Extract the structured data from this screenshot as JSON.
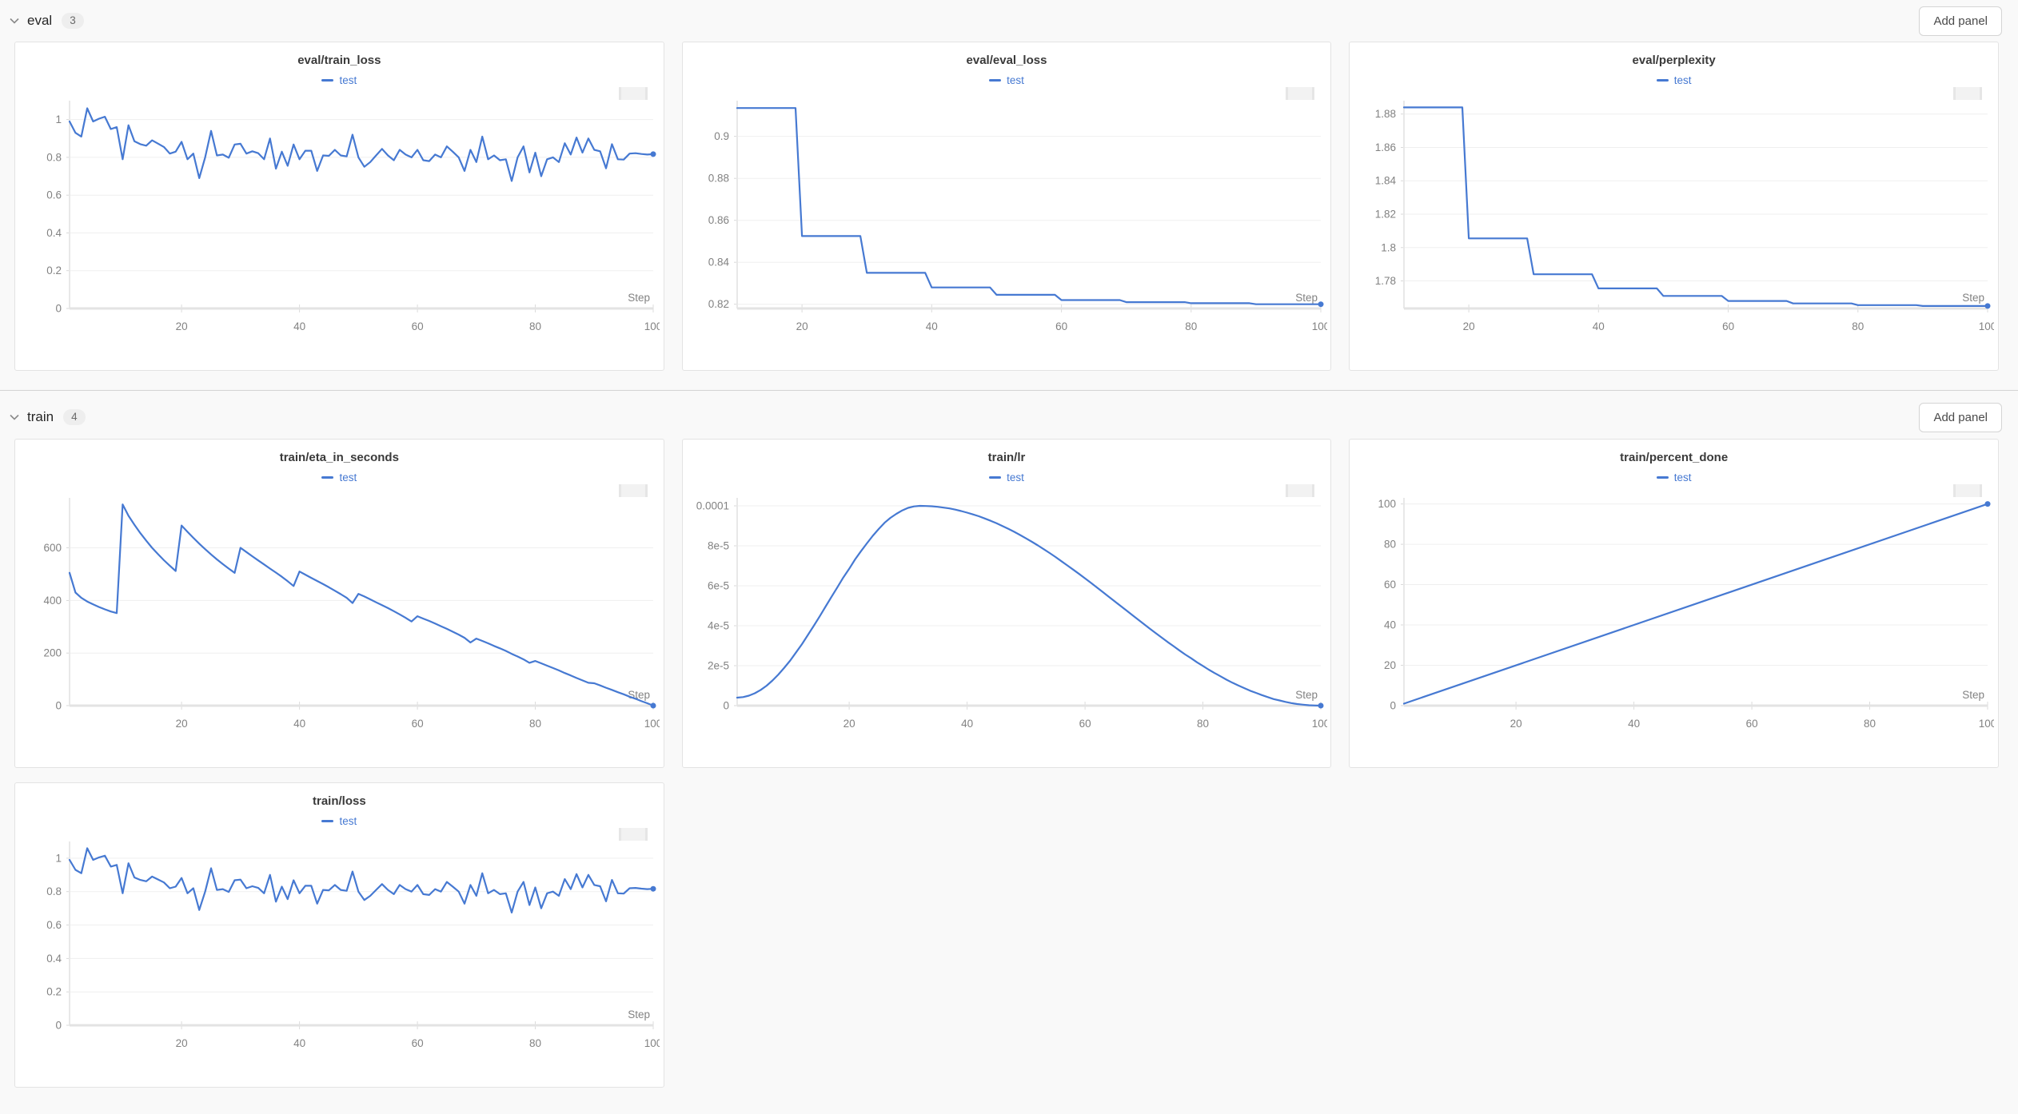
{
  "colors": {
    "accent": "#4679d2",
    "axis_text": "#828282",
    "grid": "#efefef",
    "axis_line": "#e3e3e3"
  },
  "sections": [
    {
      "name": "eval",
      "count": "3",
      "add_panel_label": "Add panel",
      "panels": [
        0,
        1,
        2
      ]
    },
    {
      "name": "train",
      "count": "4",
      "add_panel_label": "Add panel",
      "panels": [
        3,
        4,
        5,
        6
      ]
    }
  ],
  "chart_data": [
    {
      "type": "line",
      "title": "eval/train_loss",
      "xlabel": "Step",
      "legend_position": "top-center",
      "grid": true,
      "xlim": [
        1,
        100
      ],
      "ylim": [
        0,
        1.1
      ],
      "xticks": [
        20,
        40,
        60,
        80,
        100
      ],
      "yticks": [
        0,
        0.2,
        0.4,
        0.6,
        0.8,
        1
      ],
      "ytick_labels": [
        "0",
        "0.2",
        "0.4",
        "0.6",
        "0.8",
        "1"
      ],
      "series": [
        {
          "name": "test",
          "color": "#4679d2",
          "x0": 1,
          "dx": 1,
          "y": [
            0.99,
            0.93,
            0.91,
            1.06,
            0.99,
            1.005,
            1.015,
            0.95,
            0.96,
            0.79,
            0.97,
            0.885,
            0.87,
            0.862,
            0.89,
            0.873,
            0.855,
            0.82,
            0.83,
            0.882,
            0.79,
            0.82,
            0.69,
            0.8,
            0.94,
            0.81,
            0.815,
            0.798,
            0.868,
            0.872,
            0.82,
            0.832,
            0.822,
            0.79,
            0.9,
            0.74,
            0.83,
            0.755,
            0.868,
            0.79,
            0.835,
            0.835,
            0.728,
            0.81,
            0.808,
            0.84,
            0.81,
            0.805,
            0.92,
            0.8,
            0.75,
            0.775,
            0.81,
            0.845,
            0.81,
            0.785,
            0.84,
            0.815,
            0.8,
            0.84,
            0.785,
            0.78,
            0.815,
            0.8,
            0.858,
            0.83,
            0.8,
            0.728,
            0.84,
            0.775,
            0.91,
            0.79,
            0.81,
            0.785,
            0.79,
            0.675,
            0.8,
            0.858,
            0.72,
            0.825,
            0.7,
            0.79,
            0.8,
            0.775,
            0.875,
            0.815,
            0.905,
            0.825,
            0.9,
            0.84,
            0.832,
            0.742,
            0.87,
            0.79,
            0.788,
            0.82,
            0.822,
            0.818,
            0.815,
            0.817
          ]
        }
      ]
    },
    {
      "type": "line",
      "title": "eval/eval_loss",
      "xlabel": "Step",
      "legend_position": "top-center",
      "grid": true,
      "xlim": [
        10,
        100
      ],
      "ylim": [
        0.818,
        0.917
      ],
      "xticks": [
        20,
        40,
        60,
        80,
        100
      ],
      "yticks": [
        0.82,
        0.84,
        0.86,
        0.88,
        0.9
      ],
      "ytick_labels": [
        "0.82",
        "0.84",
        "0.86",
        "0.88",
        "0.9"
      ],
      "series": [
        {
          "name": "test",
          "color": "#4679d2",
          "points": [
            [
              10,
              0.9135
            ],
            [
              19,
              0.9135
            ],
            [
              20,
              0.8525
            ],
            [
              29,
              0.8525
            ],
            [
              30,
              0.835
            ],
            [
              39,
              0.835
            ],
            [
              40,
              0.828
            ],
            [
              49,
              0.828
            ],
            [
              50,
              0.8245
            ],
            [
              59,
              0.8245
            ],
            [
              60,
              0.822
            ],
            [
              69,
              0.822
            ],
            [
              70,
              0.821
            ],
            [
              79,
              0.821
            ],
            [
              80,
              0.8205
            ],
            [
              89,
              0.8205
            ],
            [
              90,
              0.82
            ],
            [
              100,
              0.82
            ]
          ]
        }
      ]
    },
    {
      "type": "line",
      "title": "eval/perplexity",
      "xlabel": "Step",
      "legend_position": "top-center",
      "grid": true,
      "xlim": [
        10,
        100
      ],
      "ylim": [
        1.7635,
        1.888
      ],
      "xticks": [
        20,
        40,
        60,
        80,
        100
      ],
      "yticks": [
        1.78,
        1.8,
        1.82,
        1.84,
        1.86,
        1.88
      ],
      "ytick_labels": [
        "1.78",
        "1.8",
        "1.82",
        "1.84",
        "1.86",
        "1.88"
      ],
      "series": [
        {
          "name": "test",
          "color": "#4679d2",
          "points": [
            [
              10,
              1.884
            ],
            [
              19,
              1.884
            ],
            [
              20,
              1.8055
            ],
            [
              29,
              1.8055
            ],
            [
              30,
              1.784
            ],
            [
              39,
              1.784
            ],
            [
              40,
              1.7755
            ],
            [
              49,
              1.7755
            ],
            [
              50,
              1.771
            ],
            [
              59,
              1.771
            ],
            [
              60,
              1.768
            ],
            [
              69,
              1.768
            ],
            [
              70,
              1.7665
            ],
            [
              79,
              1.7665
            ],
            [
              80,
              1.7655
            ],
            [
              89,
              1.7655
            ],
            [
              90,
              1.765
            ],
            [
              100,
              1.765
            ]
          ]
        }
      ]
    },
    {
      "type": "line",
      "title": "train/eta_in_seconds",
      "xlabel": "Step",
      "legend_position": "top-center",
      "grid": true,
      "xlim": [
        1,
        100
      ],
      "ylim": [
        0,
        790
      ],
      "xticks": [
        20,
        40,
        60,
        80,
        100
      ],
      "yticks": [
        0,
        200,
        400,
        600
      ],
      "ytick_labels": [
        "0",
        "200",
        "400",
        "600"
      ],
      "series": [
        {
          "name": "test",
          "color": "#4679d2",
          "x0": 1,
          "dx": 1,
          "y": [
            505,
            430,
            410,
            396,
            385,
            375,
            366,
            358,
            352,
            765,
            722,
            688,
            656,
            627,
            600,
            576,
            553,
            532,
            512,
            685,
            661,
            638,
            616,
            595,
            575,
            556,
            538,
            521,
            505,
            600,
            584,
            568,
            552,
            537,
            521,
            506,
            490,
            473,
            455,
            510,
            498,
            486,
            474,
            462,
            450,
            437,
            424,
            410,
            390,
            425,
            415,
            404,
            393,
            382,
            371,
            359,
            347,
            334,
            320,
            340,
            331,
            322,
            312,
            302,
            292,
            281,
            270,
            258,
            240,
            255,
            246,
            237,
            227,
            218,
            208,
            197,
            187,
            176,
            163,
            170,
            161,
            152,
            143,
            134,
            124,
            115,
            105,
            96,
            87,
            85,
            77,
            68,
            60,
            51,
            43,
            34,
            26,
            17,
            9,
            0
          ]
        }
      ]
    },
    {
      "type": "line",
      "title": "train/lr",
      "xlabel": "Step",
      "legend_position": "top-center",
      "grid": true,
      "xlim": [
        1,
        100
      ],
      "ylim": [
        0,
        0.000104
      ],
      "xticks": [
        20,
        40,
        60,
        80,
        100
      ],
      "yticks": [
        0,
        2e-05,
        4e-05,
        6e-05,
        8e-05,
        0.0001
      ],
      "ytick_labels": [
        "0",
        "2e-5",
        "4e-5",
        "6e-5",
        "8e-5",
        "0.0001"
      ],
      "series": [
        {
          "name": "test",
          "color": "#4679d2",
          "x0": 1,
          "dx": 1,
          "y": [
            4e-06,
            4.3e-06,
            5e-06,
            6.2e-06,
            7.9e-06,
            1e-05,
            1.26e-05,
            1.56e-05,
            1.9e-05,
            2.26e-05,
            2.67e-05,
            3.08e-05,
            3.54e-05,
            4e-05,
            4.47e-05,
            4.96e-05,
            5.45e-05,
            5.93e-05,
            6.41e-05,
            6.85e-05,
            7.32e-05,
            7.73e-05,
            8.12e-05,
            8.5e-05,
            8.84e-05,
            9.15e-05,
            9.4e-05,
            9.6e-05,
            9.77e-05,
            9.9e-05,
            9.97e-05,
            0.0001,
            9.99e-05,
            9.98e-05,
            9.95e-05,
            9.91e-05,
            9.87e-05,
            9.81e-05,
            9.74e-05,
            9.66e-05,
            9.57e-05,
            9.48e-05,
            9.37e-05,
            9.25e-05,
            9.13e-05,
            8.99e-05,
            8.85e-05,
            8.7e-05,
            8.54e-05,
            8.37e-05,
            8.2e-05,
            8.02e-05,
            7.83e-05,
            7.64e-05,
            7.44e-05,
            7.23e-05,
            7.02e-05,
            6.81e-05,
            6.59e-05,
            6.37e-05,
            6.15e-05,
            5.92e-05,
            5.69e-05,
            5.46e-05,
            5.23e-05,
            5e-05,
            4.77e-05,
            4.54e-05,
            4.31e-05,
            4.08e-05,
            3.85e-05,
            3.63e-05,
            3.41e-05,
            3.19e-05,
            2.98e-05,
            2.77e-05,
            2.56e-05,
            2.37e-05,
            2.17e-05,
            1.99e-05,
            1.8e-05,
            1.63e-05,
            1.47e-05,
            1.3e-05,
            1.15e-05,
            1.01e-05,
            8.8e-06,
            7.5e-06,
            6.4e-06,
            5.3e-06,
            4.3e-06,
            3.3e-06,
            2.6e-06,
            1.9e-06,
            1.3e-06,
            8e-07,
            5e-07,
            2e-07,
            1e-07,
            0
          ]
        }
      ]
    },
    {
      "type": "line",
      "title": "train/percent_done",
      "xlabel": "Step",
      "legend_position": "top-center",
      "grid": true,
      "xlim": [
        1,
        100
      ],
      "ylim": [
        0,
        103
      ],
      "xticks": [
        20,
        40,
        60,
        80,
        100
      ],
      "yticks": [
        0,
        20,
        40,
        60,
        80,
        100
      ],
      "ytick_labels": [
        "0",
        "20",
        "40",
        "60",
        "80",
        "100"
      ],
      "series": [
        {
          "name": "test",
          "color": "#4679d2",
          "points": [
            [
              1,
              1
            ],
            [
              100,
              100
            ]
          ]
        }
      ]
    },
    {
      "type": "line",
      "title": "train/loss",
      "xlabel": "Step",
      "legend_position": "top-center",
      "grid": true,
      "xlim": [
        1,
        100
      ],
      "ylim": [
        0,
        1.1
      ],
      "xticks": [
        20,
        40,
        60,
        80,
        100
      ],
      "yticks": [
        0,
        0.2,
        0.4,
        0.6,
        0.8,
        1
      ],
      "ytick_labels": [
        "0",
        "0.2",
        "0.4",
        "0.6",
        "0.8",
        "1"
      ],
      "series": [
        {
          "name": "test",
          "color": "#4679d2",
          "x0": 1,
          "dx": 1,
          "y": [
            0.99,
            0.93,
            0.91,
            1.06,
            0.99,
            1.005,
            1.015,
            0.95,
            0.96,
            0.79,
            0.97,
            0.885,
            0.87,
            0.862,
            0.89,
            0.873,
            0.855,
            0.82,
            0.83,
            0.882,
            0.79,
            0.82,
            0.69,
            0.8,
            0.94,
            0.81,
            0.815,
            0.798,
            0.868,
            0.872,
            0.82,
            0.832,
            0.822,
            0.79,
            0.9,
            0.74,
            0.83,
            0.755,
            0.868,
            0.79,
            0.835,
            0.835,
            0.728,
            0.81,
            0.808,
            0.84,
            0.81,
            0.805,
            0.92,
            0.8,
            0.75,
            0.775,
            0.81,
            0.845,
            0.81,
            0.785,
            0.84,
            0.815,
            0.8,
            0.84,
            0.785,
            0.78,
            0.815,
            0.8,
            0.858,
            0.83,
            0.8,
            0.728,
            0.84,
            0.775,
            0.91,
            0.79,
            0.81,
            0.785,
            0.79,
            0.675,
            0.8,
            0.858,
            0.72,
            0.825,
            0.7,
            0.79,
            0.8,
            0.775,
            0.875,
            0.815,
            0.905,
            0.825,
            0.9,
            0.84,
            0.832,
            0.742,
            0.87,
            0.79,
            0.788,
            0.82,
            0.822,
            0.818,
            0.815,
            0.817
          ]
        }
      ]
    }
  ]
}
